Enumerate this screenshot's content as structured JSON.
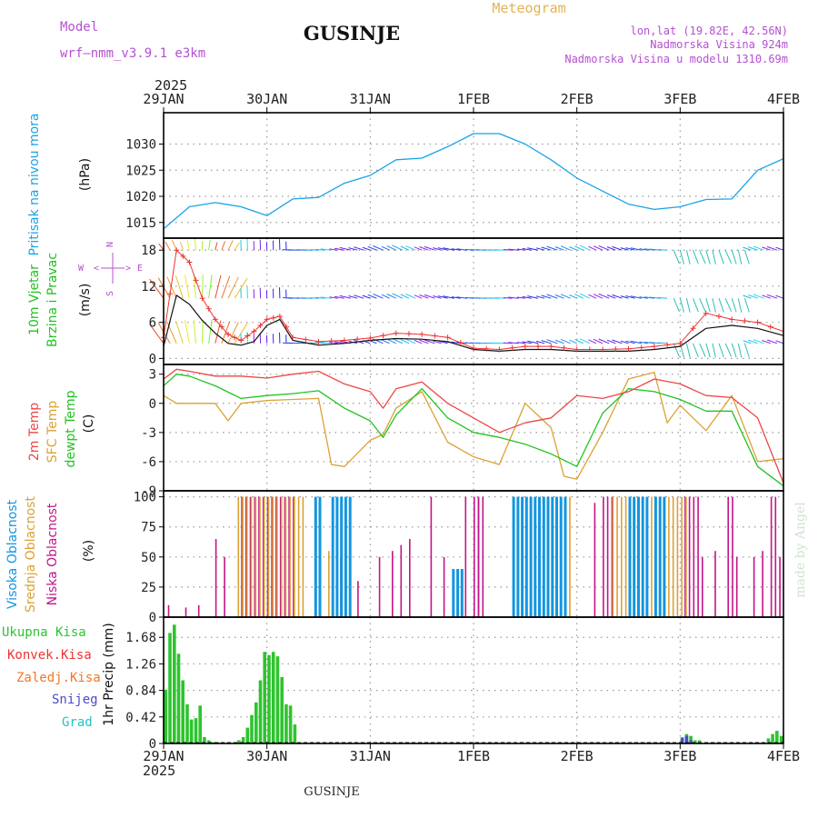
{
  "header": {
    "model_label": "Model",
    "model_value": "wrf—nmm_v3.9.1  e3km",
    "station": "GUSINJE",
    "meteogram": "Meteogram",
    "lonlat": "lon,lat (19.82E, 42.56N)",
    "altitude": "Nadmorska Visina 924m",
    "model_altitude": "Nadmorska Visina u modelu 1310.69m",
    "year": "2025",
    "footer_station": "GUSINJE",
    "credit": "made by Angel"
  },
  "colors": {
    "pressure": "#1aa3e8",
    "temp2m": "#ec4646",
    "sfc": "#dca132",
    "dew": "#22c322",
    "high_cloud": "#1296e0",
    "mid_cloud": "#dca132",
    "low_cloud": "#c4148a",
    "precip": "#2ec42e",
    "snow": "#4a4ad0",
    "grid": "#999999",
    "wind_ws": "#ee3333",
    "wind_dir_label": "#b450d2"
  },
  "chart_data": [
    {
      "id": "pressure",
      "type": "line",
      "title": "Pritisak na nivou mora",
      "ylabel": "(hPa)",
      "ylim": [
        1012,
        1036
      ],
      "yticks": [
        1015,
        1020,
        1025,
        1030
      ],
      "x_categories": [
        "29JAN",
        "30JAN",
        "31JAN",
        "1FEB",
        "2FEB",
        "3FEB",
        "4FEB"
      ],
      "x_hours": [
        0,
        24,
        48,
        72,
        96,
        120,
        144
      ],
      "series": [
        {
          "name": "Pressure",
          "x": [
            0,
            6,
            12,
            18,
            24,
            30,
            36,
            42,
            48,
            54,
            60,
            66,
            72,
            78,
            84,
            90,
            96,
            102,
            108,
            114,
            120,
            126,
            132,
            138,
            144
          ],
          "values": [
            1013.8,
            1018,
            1018.8,
            1018,
            1016.3,
            1019.5,
            1019.8,
            1022.5,
            1024,
            1027,
            1027.3,
            1029.5,
            1032,
            1032,
            1030,
            1027,
            1023.5,
            1021,
            1018.5,
            1017.5,
            1018,
            1019.4,
            1019.5,
            1025,
            1027.2
          ]
        }
      ]
    },
    {
      "id": "wind",
      "type": "line",
      "title": "10m Vjetar Brzina i Pravac",
      "ylabel": "(m/s)",
      "ylim": [
        -1,
        20
      ],
      "yticks": [
        0,
        6,
        12,
        18
      ],
      "compass": [
        "N",
        "W",
        "E",
        "S"
      ],
      "series": [
        {
          "name": "Wind speed (black)",
          "x": [
            0,
            3,
            6,
            9,
            12,
            15,
            18,
            21,
            24,
            27,
            30,
            36,
            42,
            48,
            54,
            60,
            66,
            72,
            78,
            84,
            90,
            96,
            102,
            108,
            114,
            120,
            126,
            132,
            138,
            144
          ],
          "values": [
            2,
            10.5,
            9,
            6.3,
            4.2,
            2.5,
            2.2,
            2.8,
            5.5,
            6.5,
            3,
            2.2,
            2.5,
            3,
            3.3,
            3.2,
            2.8,
            1.5,
            1.2,
            1.5,
            1.5,
            1.2,
            1.2,
            1.2,
            1.5,
            2,
            5,
            5.5,
            5,
            3.8
          ]
        },
        {
          "name": "Wind gust (red +)",
          "x": [
            0,
            3,
            6,
            9,
            12,
            15,
            18,
            21,
            24,
            27,
            30,
            36,
            42,
            48,
            54,
            60,
            66,
            72,
            78,
            84,
            90,
            96,
            102,
            108,
            114,
            120,
            126,
            132,
            138,
            144
          ],
          "values": [
            3.5,
            18,
            16,
            10,
            6.5,
            4,
            3,
            4.5,
            6.5,
            7,
            3.5,
            2.8,
            3,
            3.4,
            4.2,
            4,
            3.5,
            1.7,
            1.5,
            2,
            2,
            1.5,
            1.5,
            1.6,
            2,
            2.5,
            7.5,
            6.5,
            6,
            4.5
          ]
        }
      ]
    },
    {
      "id": "temperature",
      "type": "line",
      "title": "2m Temp / SFC Temp / dewpt Temp",
      "labels": [
        "2m Temp",
        "SFC Temp",
        "dewpt Temp"
      ],
      "ylabel": "(C)",
      "ylim": [
        -9,
        4
      ],
      "yticks": [
        -9,
        -6,
        -3,
        0,
        3
      ],
      "series": [
        {
          "name": "2m Temp",
          "x": [
            0,
            3,
            6,
            12,
            18,
            24,
            30,
            36,
            42,
            48,
            51,
            54,
            60,
            66,
            72,
            78,
            84,
            90,
            96,
            102,
            108,
            114,
            120,
            126,
            132,
            138,
            144
          ],
          "values": [
            2.5,
            3.5,
            3.3,
            2.8,
            2.8,
            2.6,
            3,
            3.3,
            2,
            1.2,
            -0.5,
            1.5,
            2.2,
            0,
            -1.5,
            -3,
            -2,
            -1.5,
            0.8,
            0.5,
            1.2,
            2.5,
            2,
            0.8,
            0.6,
            -1.5,
            -8.2
          ]
        },
        {
          "name": "SFC Temp",
          "x": [
            0,
            3,
            6,
            12,
            15,
            18,
            24,
            30,
            36,
            39,
            42,
            48,
            51,
            54,
            60,
            66,
            72,
            78,
            84,
            90,
            93,
            96,
            102,
            108,
            114,
            117,
            120,
            126,
            132,
            138,
            144
          ],
          "values": [
            0.8,
            0,
            0,
            0,
            -1.8,
            0,
            0.3,
            0.4,
            0.5,
            -6.3,
            -6.5,
            -3.8,
            -3.2,
            -0.5,
            1.2,
            -4,
            -5.5,
            -6.3,
            0,
            -2.5,
            -7.5,
            -7.8,
            -3,
            2.5,
            3.2,
            -2,
            -0.2,
            -2.8,
            0.8,
            -6,
            -5.7
          ]
        },
        {
          "name": "dewpt Temp",
          "x": [
            0,
            3,
            6,
            12,
            18,
            24,
            30,
            36,
            42,
            48,
            51,
            54,
            60,
            66,
            72,
            78,
            84,
            90,
            96,
            102,
            108,
            114,
            120,
            126,
            132,
            138,
            144
          ],
          "values": [
            1.8,
            3,
            2.8,
            1.8,
            0.5,
            0.8,
            1,
            1.3,
            -0.5,
            -1.8,
            -3.5,
            -1.2,
            1.5,
            -1.5,
            -3,
            -3.5,
            -4.2,
            -5.2,
            -6.5,
            -1,
            1.5,
            1.2,
            0.4,
            -0.8,
            -0.8,
            -6.5,
            -8.5
          ]
        }
      ]
    },
    {
      "id": "cloud",
      "type": "bar",
      "title": "Visoka / Srednja / Niska Oblacnost",
      "labels": [
        "Visoka Oblacnost",
        "Srednja Oblacnost",
        "Niska Oblacnost"
      ],
      "ylabel": "(%)",
      "ylim": [
        0,
        105
      ],
      "yticks": [
        0,
        25,
        50,
        75,
        100
      ],
      "series": [
        {
          "name": "Visoka",
          "spans": [
            [
              35,
              36,
              100
            ],
            [
              39,
              43,
              100
            ],
            [
              67,
              69,
              40
            ],
            [
              81,
              93,
              100
            ],
            [
              108,
              112,
              100
            ],
            [
              114,
              116,
              100
            ]
          ]
        },
        {
          "name": "Srednja",
          "spans": [
            [
              17,
              19,
              100
            ],
            [
              20,
              32,
              100
            ],
            [
              38,
              40,
              55
            ],
            [
              87,
              94,
              100
            ],
            [
              104,
              121,
              100
            ]
          ]
        },
        {
          "name": "Niska",
          "spans": [
            [
              18,
              30,
              100
            ],
            [
              72,
              74,
              100
            ],
            [
              102,
              104,
              100
            ],
            [
              121,
              124,
              100
            ],
            [
              131,
              132,
              100
            ],
            [
              141,
              142,
              100
            ]
          ],
          "sparse": [
            [
              1,
              10
            ],
            [
              5,
              8
            ],
            [
              8,
              10
            ],
            [
              12,
              65
            ],
            [
              14,
              50
            ],
            [
              25,
              50
            ],
            [
              41,
              50
            ],
            [
              45,
              30
            ],
            [
              50,
              50
            ],
            [
              53,
              55
            ],
            [
              55,
              60
            ],
            [
              57,
              65
            ],
            [
              62,
              100
            ],
            [
              65,
              50
            ],
            [
              70,
              100
            ],
            [
              73,
              100
            ],
            [
              100,
              95
            ],
            [
              125,
              50
            ],
            [
              128,
              55
            ],
            [
              133,
              50
            ],
            [
              137,
              50
            ],
            [
              139,
              55
            ],
            [
              143,
              50
            ]
          ]
        }
      ]
    },
    {
      "id": "precip",
      "type": "bar",
      "title": "1hr Precip",
      "labels": [
        "Ukupna Kisa",
        "Konvek.Kisa",
        "Zaledj.Kisa",
        "Snijeg",
        "Grad"
      ],
      "label_colors": [
        "#2ec42e",
        "#ee3333",
        "#f07828",
        "#4a4ad0",
        "#22c3c3"
      ],
      "ylabel": "1hr Precip (mm)",
      "ylim": [
        0,
        2.0
      ],
      "yticks": [
        0,
        0.42,
        0.84,
        1.26,
        1.68
      ],
      "series": [
        {
          "name": "Ukupna Kisa",
          "x": [
            0,
            1,
            2,
            3,
            4,
            5,
            6,
            7,
            8,
            9,
            10,
            11,
            12,
            17,
            18,
            19,
            20,
            21,
            22,
            23,
            24,
            25,
            26,
            27,
            28,
            29,
            30,
            31,
            120,
            121,
            122,
            123,
            124,
            140,
            141,
            142,
            143
          ],
          "values": [
            0.85,
            1.75,
            1.88,
            1.42,
            1.0,
            0.62,
            0.38,
            0.4,
            0.6,
            0.1,
            0.05,
            0.02,
            0.02,
            0.05,
            0.1,
            0.25,
            0.45,
            0.65,
            1.0,
            1.45,
            1.4,
            1.45,
            1.38,
            1.05,
            0.62,
            0.6,
            0.3,
            0.02,
            0.1,
            0.15,
            0.12,
            0.05,
            0.05,
            0.08,
            0.15,
            0.2,
            0.12
          ]
        },
        {
          "name": "Snijeg",
          "x": [
            120,
            121,
            122
          ],
          "values": [
            0.08,
            0.12,
            0.05
          ]
        }
      ]
    }
  ]
}
